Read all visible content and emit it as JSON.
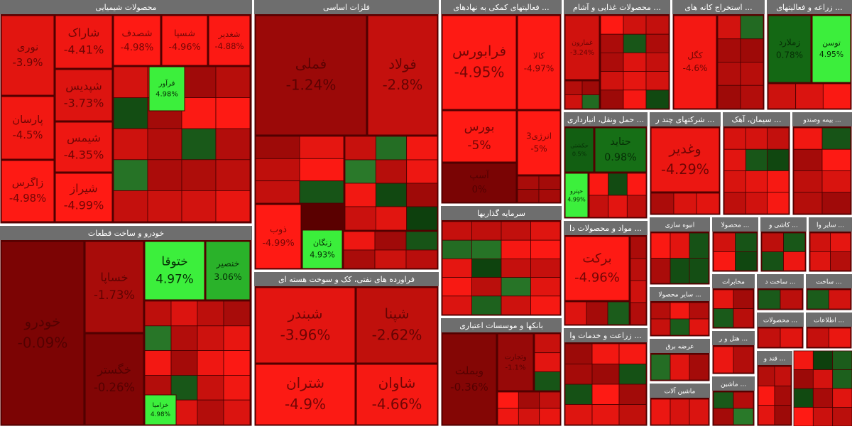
{
  "chart_data": {
    "type": "treemap",
    "colors": {
      "loss": "#ff1a14",
      "flat": "#7a0404",
      "gain": "#3cf03c",
      "weak_gain": "#0d4f0d"
    },
    "groups": [
      {
        "name": "محصولات شیمیایی",
        "names": [
          "نوری",
          "پارسان",
          "زاگرس",
          "شاراک",
          "شپدیس",
          "شیمس",
          "شیراز",
          "شصدف",
          "شسپا",
          "شغدیر",
          "فرآور"
        ],
        "values": [
          -3.9,
          -4.5,
          -4.98,
          -4.41,
          -3.73,
          -4.35,
          -4.99,
          -4.98,
          -4.96,
          -4.88,
          4.98
        ],
        "value_labels": [
          "-3.9%",
          "-4.5%",
          "-4.98%",
          "-4.41%",
          "-3.73%",
          "-4.35%",
          "-4.99%",
          "-4.98%",
          "-4.96%",
          "-4.88%",
          "4.98%"
        ]
      },
      {
        "name": "خودرو و ساخت قطعات",
        "names": [
          "خودرو",
          "خساپا",
          "خگستر",
          "ختوقا",
          "خنصیر",
          "خزامیا"
        ],
        "values": [
          -0.09,
          -1.73,
          -0.26,
          4.97,
          3.06,
          4.98
        ],
        "value_labels": [
          "-0.09%",
          "-1.73%",
          "-0.26%",
          "4.97%",
          "3.06%",
          "4.98%"
        ]
      },
      {
        "name": "فلزات اساسی",
        "names": [
          "فملی",
          "فولاد",
          "ذوب",
          "زنگان"
        ],
        "values": [
          -1.24,
          -2.8,
          -4.99,
          4.93
        ],
        "value_labels": [
          "-1.24%",
          "-2.8%",
          "-4.99%",
          "4.93%"
        ]
      },
      {
        "name": "فراورده های نفتی، کک و سوخت هسته ای",
        "names": [
          "شبندر",
          "شپنا",
          "شتران",
          "شاوان"
        ],
        "values": [
          -3.96,
          -2.62,
          -4.9,
          -4.66
        ],
        "value_labels": [
          "-3.96%",
          "-2.62%",
          "-4.9%",
          "-4.66%"
        ]
      },
      {
        "name": "... فعالیتهای کمکی به نهادهای",
        "names": [
          "فرابورس",
          "کالا",
          "بورس",
          "انرژی3",
          "آسپ"
        ],
        "values": [
          -4.95,
          -4.97,
          -5,
          -5,
          0
        ],
        "value_labels": [
          "-4.95%",
          "-4.97%",
          "-5%",
          "-5%",
          "0%"
        ]
      },
      {
        "name": "سرمایه گذاریها"
      },
      {
        "name": "بانکها و موسسات اعتباری",
        "names": [
          "وبملت",
          "وتجارت"
        ],
        "values": [
          -0.36,
          -1.1
        ],
        "value_labels": [
          "-0.36%",
          "-1.1%"
        ]
      },
      {
        "name": "... محصولات غذایی و آشام",
        "names": [
          "غمارون"
        ],
        "values": [
          -3.24
        ],
        "value_labels": [
          "-3.24%"
        ]
      },
      {
        "name": "... استخراج کانه های",
        "names": [
          "کگل"
        ],
        "values": [
          -4.6
        ],
        "value_labels": [
          "-4.6%"
        ]
      },
      {
        "name": "... زراعه و فعالیتهای",
        "names": [
          "زملارد",
          "توسن"
        ],
        "values": [
          0.78,
          4.95
        ],
        "value_labels": [
          "0.78%",
          "4.95%"
        ]
      },
      {
        "name": "... حمل ونقل، انبارداری",
        "names": [
          "حکشتی",
          "حتاید",
          "حپترو"
        ],
        "values": [
          0.5,
          0.98,
          4.99
        ],
        "value_labels": [
          "0.5%",
          "0.98%",
          "4.99%"
        ]
      },
      {
        "name": "... شرکتهای چند ر",
        "names": [
          "وغدیر"
        ],
        "values": [
          -4.29
        ],
        "value_labels": [
          "-4.29%"
        ]
      },
      {
        "name": "... سیمان، آهک"
      },
      {
        "name": "... بیمه وصندو"
      },
      {
        "name": "... مواد و محصولات دا",
        "names": [
          "برکت"
        ],
        "values": [
          -4.96
        ],
        "value_labels": [
          "-4.96%"
        ]
      },
      {
        "name": "... زراعت و خدمات وا"
      },
      {
        "name": "انبوه سازی"
      },
      {
        "name": "... محصولا"
      },
      {
        "name": "... کاشی و"
      },
      {
        "name": "... سایر وا"
      },
      {
        "name": "... سایر محصولا"
      },
      {
        "name": "مخابرات"
      },
      {
        "name": "... ساخت د"
      },
      {
        "name": "... ساخت"
      },
      {
        "name": "عرضه برق"
      },
      {
        "name": "... هتل و ر"
      },
      {
        "name": "... محصولات"
      },
      {
        "name": "... اطلاعات"
      },
      {
        "name": "ماشین آلات"
      },
      {
        "name": "... ماشین"
      },
      {
        "name": "... قند و"
      }
    ]
  }
}
